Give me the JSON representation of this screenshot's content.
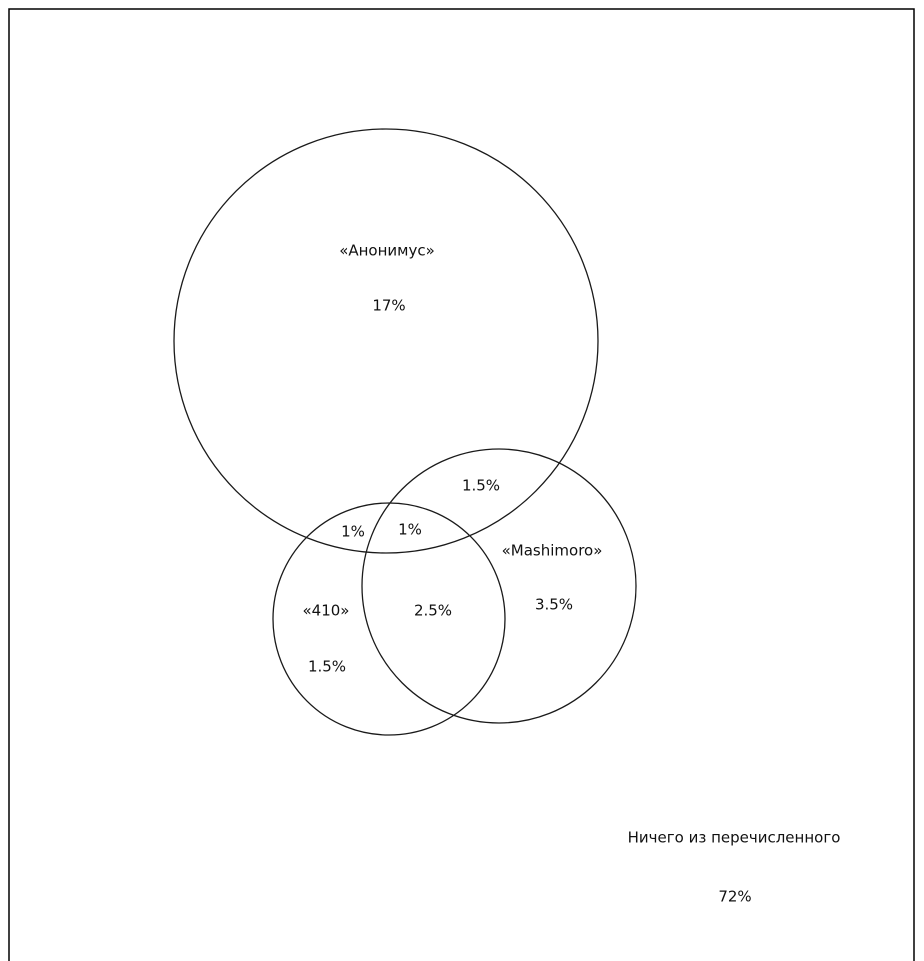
{
  "sets": [
    {
      "id": "anonymus",
      "label": "«Анонимус»",
      "value": "17%"
    },
    {
      "id": "410",
      "label": "«410»",
      "value": "1.5%"
    },
    {
      "id": "mashimoro",
      "label": "«Mashimoro»",
      "value": "3.5%"
    }
  ],
  "intersections": {
    "anonymus_mashimoro": "1.5%",
    "anonymus_410": "1%",
    "anonymus_410_mashimoro": "1%",
    "410_mashimoro": "2.5%"
  },
  "outside": {
    "label": "Ничего из перечисленного",
    "value": "72%"
  }
}
